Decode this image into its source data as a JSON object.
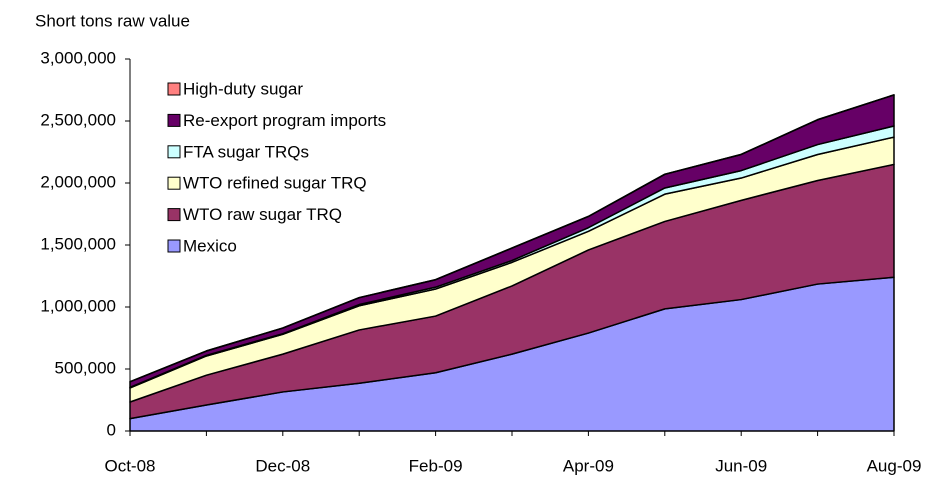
{
  "chart_data": {
    "type": "stacked_area",
    "y_axis_label": "Short tons raw value",
    "categories": [
      "Oct-08",
      null,
      "Dec-08",
      null,
      "Feb-09",
      null,
      "Apr-09",
      null,
      "Jun-09",
      null,
      "Aug-09"
    ],
    "series": [
      {
        "name": "Mexico",
        "color": "#9999ff",
        "values": [
          100000,
          210000,
          315000,
          385000,
          470000,
          620000,
          790000,
          985000,
          1060000,
          1185000,
          1240000
        ]
      },
      {
        "name": "WTO raw sugar TRQ",
        "color": "#993366",
        "values": [
          134000,
          240000,
          305000,
          430000,
          457000,
          550000,
          670000,
          705000,
          800000,
          835000,
          910000
        ]
      },
      {
        "name": "WTO refined sugar TRQ",
        "color": "#ffffcc",
        "values": [
          113000,
          155000,
          160000,
          195000,
          218000,
          190000,
          150000,
          220000,
          180000,
          210000,
          220000
        ]
      },
      {
        "name": "FTA sugar TRQs",
        "color": "#ccffff",
        "values": [
          5000,
          5000,
          5000,
          10000,
          15000,
          15000,
          30000,
          50000,
          60000,
          80000,
          90000
        ]
      },
      {
        "name": "Re-export program imports",
        "color": "#660066",
        "values": [
          45000,
          35000,
          45000,
          55000,
          60000,
          100000,
          90000,
          110000,
          130000,
          200000,
          250000
        ]
      },
      {
        "name": "High-duty sugar",
        "color": "#ff8080",
        "values": [
          1000,
          1000,
          1000,
          1000,
          1000,
          1000,
          1000,
          1000,
          1000,
          1000,
          1000
        ]
      }
    ],
    "ylim": [
      0,
      3000000
    ],
    "yticks": [
      0,
      {
        "value": 500000,
        "label": "500,000"
      },
      {
        "value": 1000000,
        "label": "1,000,000"
      },
      {
        "value": 1500000,
        "label": "1,500,000"
      },
      {
        "value": 2000000,
        "label": "2,000,000"
      },
      {
        "value": 2500000,
        "label": "2,500,000"
      },
      {
        "value": 3000000,
        "label": "3,000,000"
      }
    ],
    "grid": false,
    "legend_position": "upper-left"
  }
}
